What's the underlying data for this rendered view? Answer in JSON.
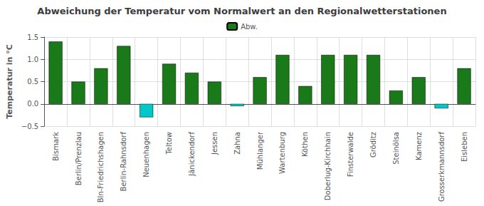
{
  "chart_data": {
    "type": "bar",
    "title": "Abweichung der Temperatur vom Normalwert an den Regionalwetterstationen",
    "ylabel": "Temperatur in °C",
    "categories": [
      "Bismark",
      "Berlin/Prenzlau",
      "Bln-Friedrichshagen",
      "Berlin-Rahnsdorf",
      "Neuenhagen",
      "Teltow",
      "Jänickendorf",
      "Jessen",
      "Zahna",
      "Mühlanger",
      "Wartenburg",
      "Köthen",
      "Doberlug-Kirchhain",
      "Finsterwalde",
      "Gröditz",
      "Steinölsa",
      "Kamenz",
      "Grosserkmannsdorf",
      "Eisleben"
    ],
    "series": [
      {
        "name": "Abw.",
        "color": "#1a7a1a",
        "colors": [
          "#1a7a1a",
          "#1a7a1a",
          "#1a7a1a",
          "#1a7a1a",
          "#00c8c8",
          "#1a7a1a",
          "#1a7a1a",
          "#1a7a1a",
          "#00c8c8",
          "#1a7a1a",
          "#1a7a1a",
          "#1a7a1a",
          "#1a7a1a",
          "#1a7a1a",
          "#1a7a1a",
          "#1a7a1a",
          "#1a7a1a",
          "#00c8c8",
          "#1a7a1a"
        ],
        "values": [
          1.4,
          0.5,
          0.8,
          1.3,
          -0.3,
          0.9,
          0.7,
          0.5,
          -0.05,
          0.6,
          1.1,
          0.4,
          1.1,
          1.1,
          1.1,
          0.3,
          0.6,
          -0.1,
          0.8
        ]
      }
    ],
    "ylim": [
      -0.5,
      1.5
    ],
    "yticks": [
      {
        "value": -0.5,
        "label": "−0.5"
      },
      {
        "value": 0,
        "label": "0.0"
      },
      0.5,
      {
        "value": 1,
        "label": "1.0"
      },
      1.5
    ],
    "grid": true,
    "legend": "top"
  }
}
